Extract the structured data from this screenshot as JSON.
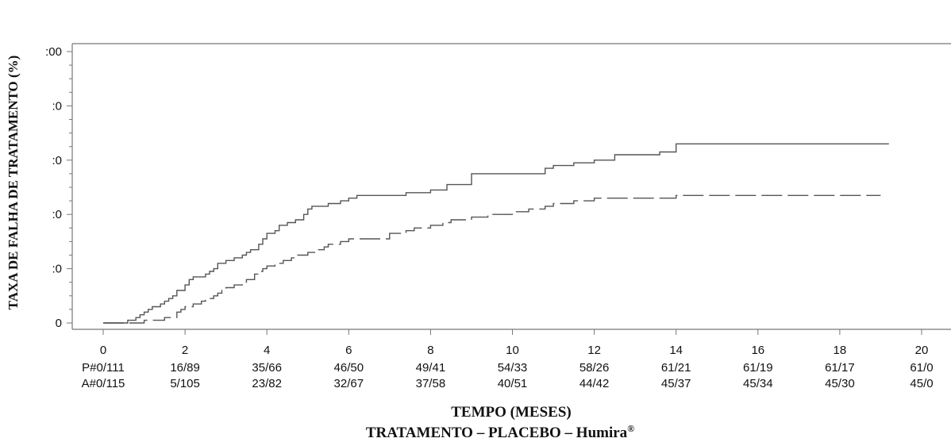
{
  "chart_data": {
    "type": "line",
    "step": true,
    "title": "",
    "ylabel": "TAXA DE FALHA DE TRATAMENTO (%)",
    "xlabel": "TEMPO (MESES)",
    "subtitle": "TRATAMENTO – PLACEBO – Humira",
    "subtitle_mark": "®",
    "xlim": [
      0,
      20
    ],
    "ylim": [
      0,
      100
    ],
    "x_ticks": [
      0,
      2,
      4,
      6,
      8,
      10,
      12,
      14,
      16,
      18,
      20
    ],
    "x_tick_labels": [
      "0",
      "2",
      "4",
      "6",
      "8",
      "10",
      "12",
      "14",
      "16",
      "18",
      "20"
    ],
    "y_ticks": [
      0,
      20,
      40,
      60,
      80,
      100
    ],
    "y_tick_labels": [
      "0",
      ":0",
      ":0",
      ":0",
      ":0",
      ":00"
    ],
    "grid": false,
    "series": [
      {
        "style": "solid",
        "color": "#555555",
        "points": [
          [
            0,
            0
          ],
          [
            0.5,
            0
          ],
          [
            0.6,
            1
          ],
          [
            0.8,
            2
          ],
          [
            0.9,
            3
          ],
          [
            1.0,
            4
          ],
          [
            1.1,
            5
          ],
          [
            1.2,
            6
          ],
          [
            1.4,
            7
          ],
          [
            1.5,
            8
          ],
          [
            1.6,
            9
          ],
          [
            1.7,
            10
          ],
          [
            1.8,
            12
          ],
          [
            2.0,
            14
          ],
          [
            2.1,
            16
          ],
          [
            2.2,
            17
          ],
          [
            2.5,
            18
          ],
          [
            2.6,
            19
          ],
          [
            2.7,
            20
          ],
          [
            2.8,
            22
          ],
          [
            3.0,
            23
          ],
          [
            3.2,
            24
          ],
          [
            3.4,
            25
          ],
          [
            3.5,
            26
          ],
          [
            3.6,
            27
          ],
          [
            3.8,
            29
          ],
          [
            3.9,
            31
          ],
          [
            4.0,
            33
          ],
          [
            4.2,
            34
          ],
          [
            4.3,
            36
          ],
          [
            4.5,
            37
          ],
          [
            4.7,
            38
          ],
          [
            4.9,
            40
          ],
          [
            5.0,
            42
          ],
          [
            5.1,
            43
          ],
          [
            5.5,
            44
          ],
          [
            5.8,
            45
          ],
          [
            6.0,
            46
          ],
          [
            6.2,
            47
          ],
          [
            7.4,
            48
          ],
          [
            8.0,
            49
          ],
          [
            8.4,
            51
          ],
          [
            9.0,
            55
          ],
          [
            10.8,
            57
          ],
          [
            11.0,
            58
          ],
          [
            11.5,
            59
          ],
          [
            12.0,
            60
          ],
          [
            12.5,
            62
          ],
          [
            13.6,
            63
          ],
          [
            14.0,
            66
          ],
          [
            19.2,
            66
          ]
        ]
      },
      {
        "style": "dashed",
        "color": "#555555",
        "points": [
          [
            0,
            0
          ],
          [
            0.8,
            0
          ],
          [
            1.0,
            1
          ],
          [
            1.5,
            2
          ],
          [
            1.8,
            4
          ],
          [
            1.9,
            5
          ],
          [
            2.0,
            6
          ],
          [
            2.2,
            7
          ],
          [
            2.4,
            8
          ],
          [
            2.5,
            9
          ],
          [
            2.7,
            10
          ],
          [
            2.8,
            11
          ],
          [
            2.9,
            12
          ],
          [
            3.0,
            13
          ],
          [
            3.2,
            14
          ],
          [
            3.4,
            15
          ],
          [
            3.5,
            16
          ],
          [
            3.7,
            18
          ],
          [
            3.8,
            19
          ],
          [
            3.9,
            20
          ],
          [
            4.0,
            21
          ],
          [
            4.2,
            22
          ],
          [
            4.4,
            23
          ],
          [
            4.6,
            24
          ],
          [
            4.7,
            25
          ],
          [
            5.0,
            26
          ],
          [
            5.2,
            27
          ],
          [
            5.4,
            28
          ],
          [
            5.5,
            29
          ],
          [
            5.8,
            30
          ],
          [
            6.0,
            31
          ],
          [
            7.0,
            33
          ],
          [
            7.4,
            34
          ],
          [
            7.6,
            35
          ],
          [
            8.0,
            36
          ],
          [
            8.3,
            37
          ],
          [
            8.5,
            38
          ],
          [
            9.0,
            39
          ],
          [
            9.4,
            40
          ],
          [
            10.0,
            41
          ],
          [
            10.4,
            42
          ],
          [
            10.8,
            43
          ],
          [
            11.0,
            44
          ],
          [
            11.5,
            45
          ],
          [
            12.0,
            46
          ],
          [
            14.0,
            47
          ],
          [
            19.0,
            47
          ]
        ]
      }
    ],
    "risk_table": {
      "P": [
        "P#0/111",
        "16/89",
        "35/66",
        "46/50",
        "49/41",
        "54/33",
        "58/26",
        "61/21",
        "61/19",
        "61/17",
        "61/0"
      ],
      "A": [
        "A#0/115",
        "5/105",
        "23/82",
        "32/67",
        "37/58",
        "40/51",
        "44/42",
        "45/37",
        "45/34",
        "45/30",
        "45/0"
      ]
    }
  }
}
